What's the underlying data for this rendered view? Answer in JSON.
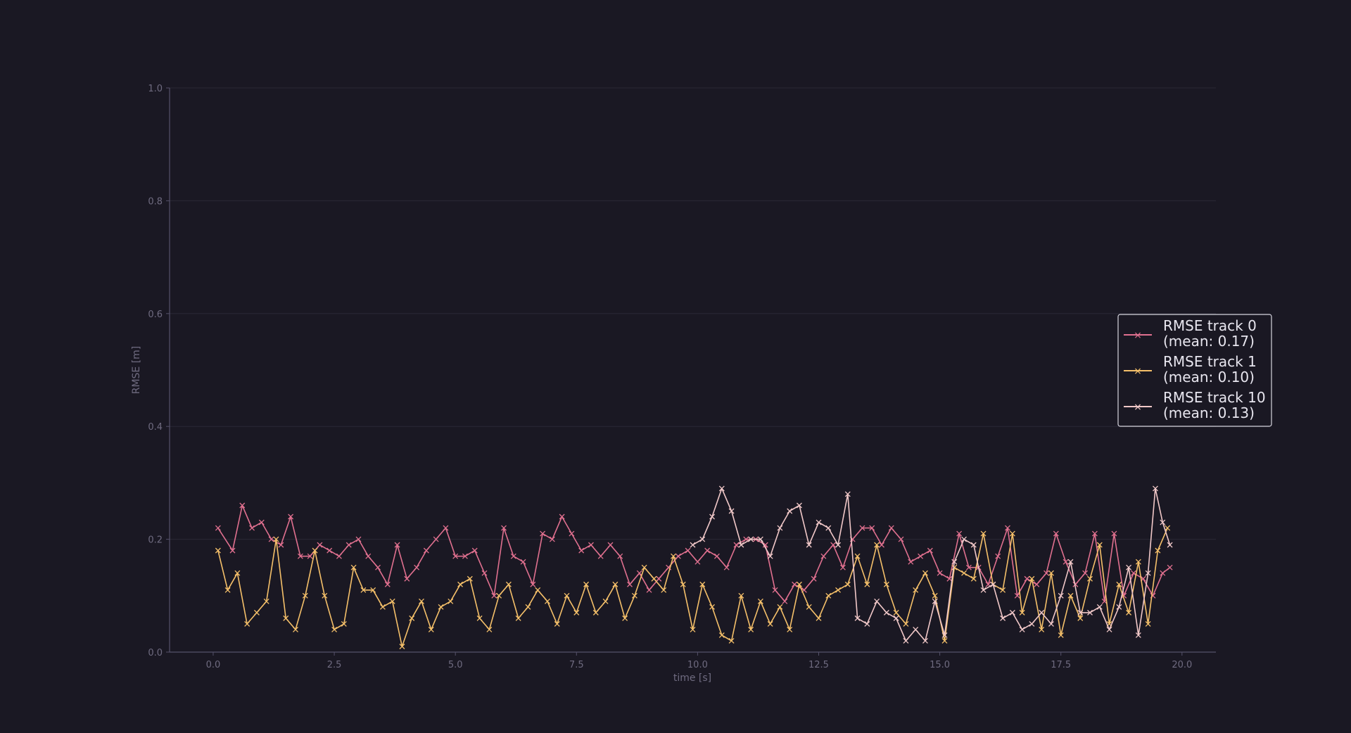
{
  "chart_data": {
    "type": "line",
    "title": "",
    "xlabel": "time [s]",
    "ylabel": "RMSE [m]",
    "xlim": [
      -0.9,
      20.7
    ],
    "ylim": [
      0.0,
      1.0
    ],
    "x_ticks": [
      "0.0",
      "2.5",
      "5.0",
      "7.5",
      "10.0",
      "12.5",
      "15.0",
      "17.5",
      "20.0"
    ],
    "y_ticks": [
      "0.0",
      "0.2",
      "0.4",
      "0.6",
      "0.8",
      "1.0"
    ],
    "grid": true,
    "legend_position": "right",
    "marker": "x",
    "series": [
      {
        "name": "RMSE track 0",
        "legend_line2": "(mean: 0.17)",
        "color": "#e0708f",
        "x": [
          0.1,
          0.4,
          0.6,
          0.8,
          1.0,
          1.2,
          1.4,
          1.6,
          1.8,
          2.0,
          2.2,
          2.4,
          2.6,
          2.8,
          3.0,
          3.2,
          3.4,
          3.6,
          3.8,
          4.0,
          4.2,
          4.4,
          4.6,
          4.8,
          5.0,
          5.2,
          5.4,
          5.6,
          5.8,
          6.0,
          6.2,
          6.4,
          6.6,
          6.8,
          7.0,
          7.2,
          7.4,
          7.6,
          7.8,
          8.0,
          8.2,
          8.4,
          8.6,
          8.8,
          9.0,
          9.2,
          9.4,
          9.6,
          9.8,
          10.0,
          10.2,
          10.4,
          10.6,
          10.8,
          11.0,
          11.2,
          11.4,
          11.6,
          11.8,
          12.0,
          12.2,
          12.4,
          12.6,
          12.8,
          13.0,
          13.2,
          13.4,
          13.6,
          13.8,
          14.0,
          14.2,
          14.4,
          14.6,
          14.8,
          15.0,
          15.2,
          15.4,
          15.6,
          15.8,
          16.0,
          16.2,
          16.4,
          16.6,
          16.8,
          17.0,
          17.2,
          17.4,
          17.6,
          17.8,
          18.0,
          18.2,
          18.4,
          18.6,
          18.8,
          19.0,
          19.2,
          19.4,
          19.6,
          19.75
        ],
        "y": [
          0.22,
          0.18,
          0.26,
          0.22,
          0.23,
          0.2,
          0.19,
          0.24,
          0.17,
          0.17,
          0.19,
          0.18,
          0.17,
          0.19,
          0.2,
          0.17,
          0.15,
          0.12,
          0.19,
          0.13,
          0.15,
          0.18,
          0.2,
          0.22,
          0.17,
          0.17,
          0.18,
          0.14,
          0.1,
          0.22,
          0.17,
          0.16,
          0.12,
          0.21,
          0.2,
          0.24,
          0.21,
          0.18,
          0.19,
          0.17,
          0.19,
          0.17,
          0.12,
          0.14,
          0.11,
          0.13,
          0.15,
          0.17,
          0.18,
          0.16,
          0.18,
          0.17,
          0.15,
          0.19,
          0.2,
          0.2,
          0.19,
          0.11,
          0.09,
          0.12,
          0.11,
          0.13,
          0.17,
          0.19,
          0.15,
          0.2,
          0.22,
          0.22,
          0.19,
          0.22,
          0.2,
          0.16,
          0.17,
          0.18,
          0.14,
          0.13,
          0.21,
          0.15,
          0.15,
          0.12,
          0.17,
          0.22,
          0.1,
          0.13,
          0.12,
          0.14,
          0.21,
          0.16,
          0.12,
          0.14,
          0.21,
          0.09,
          0.21,
          0.1,
          0.14,
          0.13,
          0.1,
          0.14,
          0.15
        ]
      },
      {
        "name": "RMSE track 1",
        "legend_line2": "(mean: 0.10)",
        "color": "#f5c06a",
        "x": [
          0.1,
          0.3,
          0.5,
          0.7,
          0.9,
          1.1,
          1.3,
          1.5,
          1.7,
          1.9,
          2.1,
          2.3,
          2.5,
          2.7,
          2.9,
          3.1,
          3.3,
          3.5,
          3.7,
          3.9,
          4.1,
          4.3,
          4.5,
          4.7,
          4.9,
          5.1,
          5.3,
          5.5,
          5.7,
          5.9,
          6.1,
          6.3,
          6.5,
          6.7,
          6.9,
          7.1,
          7.3,
          7.5,
          7.7,
          7.9,
          8.1,
          8.3,
          8.5,
          8.7,
          8.9,
          9.1,
          9.3,
          9.5,
          9.7,
          9.9,
          10.1,
          10.3,
          10.5,
          10.7,
          10.9,
          11.1,
          11.3,
          11.5,
          11.7,
          11.9,
          12.1,
          12.3,
          12.5,
          12.7,
          12.9,
          13.1,
          13.3,
          13.5,
          13.7,
          13.9,
          14.1,
          14.3,
          14.5,
          14.7,
          14.9,
          15.1,
          15.3,
          15.5,
          15.7,
          15.9,
          16.1,
          16.3,
          16.5,
          16.7,
          16.9,
          17.1,
          17.3,
          17.5,
          17.7,
          17.9,
          18.1,
          18.3,
          18.5,
          18.7,
          18.9,
          19.1,
          19.3,
          19.5,
          19.7
        ],
        "y": [
          0.18,
          0.11,
          0.14,
          0.05,
          0.07,
          0.09,
          0.2,
          0.06,
          0.04,
          0.1,
          0.18,
          0.1,
          0.04,
          0.05,
          0.15,
          0.11,
          0.11,
          0.08,
          0.09,
          0.01,
          0.06,
          0.09,
          0.04,
          0.08,
          0.09,
          0.12,
          0.13,
          0.06,
          0.04,
          0.1,
          0.12,
          0.06,
          0.08,
          0.11,
          0.09,
          0.05,
          0.1,
          0.07,
          0.12,
          0.07,
          0.09,
          0.12,
          0.06,
          0.1,
          0.15,
          0.13,
          0.11,
          0.17,
          0.12,
          0.04,
          0.12,
          0.08,
          0.03,
          0.02,
          0.1,
          0.04,
          0.09,
          0.05,
          0.08,
          0.04,
          0.12,
          0.08,
          0.06,
          0.1,
          0.11,
          0.12,
          0.17,
          0.12,
          0.19,
          0.12,
          0.07,
          0.05,
          0.11,
          0.14,
          0.1,
          0.02,
          0.15,
          0.14,
          0.13,
          0.21,
          0.12,
          0.11,
          0.21,
          0.07,
          0.13,
          0.04,
          0.14,
          0.03,
          0.1,
          0.06,
          0.13,
          0.19,
          0.05,
          0.12,
          0.07,
          0.16,
          0.05,
          0.18,
          0.22
        ]
      },
      {
        "name": "RMSE track 10",
        "legend_line2": "(mean: 0.13)",
        "color": "#f1c8c8",
        "x": [
          9.9,
          10.1,
          10.3,
          10.5,
          10.7,
          10.9,
          11.1,
          11.3,
          11.5,
          11.7,
          11.9,
          12.1,
          12.3,
          12.5,
          12.7,
          12.9,
          13.1,
          13.3,
          13.5,
          13.7,
          13.9,
          14.1,
          14.3,
          14.5,
          14.7,
          14.9,
          15.1,
          15.3,
          15.5,
          15.7,
          15.9,
          16.1,
          16.3,
          16.5,
          16.7,
          16.9,
          17.1,
          17.3,
          17.5,
          17.7,
          17.9,
          18.1,
          18.3,
          18.5,
          18.7,
          18.9,
          19.1,
          19.3,
          19.45,
          19.6,
          19.75
        ],
        "y": [
          0.19,
          0.2,
          0.24,
          0.29,
          0.25,
          0.19,
          0.2,
          0.2,
          0.17,
          0.22,
          0.25,
          0.26,
          0.19,
          0.23,
          0.22,
          0.19,
          0.28,
          0.06,
          0.05,
          0.09,
          0.07,
          0.06,
          0.02,
          0.04,
          0.02,
          0.09,
          0.03,
          0.16,
          0.2,
          0.19,
          0.11,
          0.12,
          0.06,
          0.07,
          0.04,
          0.05,
          0.07,
          0.05,
          0.1,
          0.16,
          0.07,
          0.07,
          0.08,
          0.04,
          0.08,
          0.15,
          0.03,
          0.14,
          0.29,
          0.23,
          0.19
        ]
      }
    ]
  }
}
